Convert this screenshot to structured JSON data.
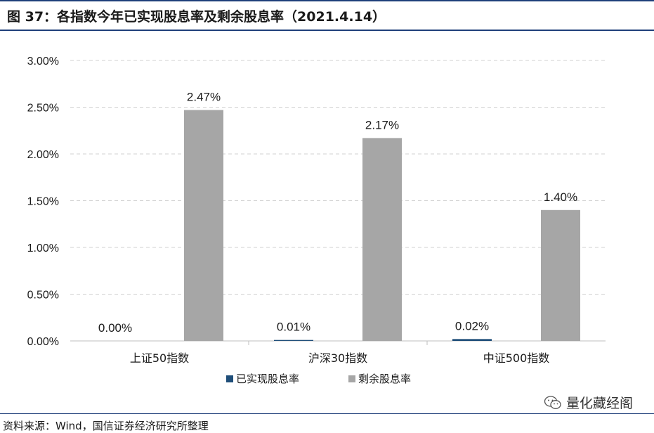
{
  "figure": {
    "title": "图 37：各指数今年已实现股息率及剩余股息率（2021.4.14）",
    "source": "资料来源：Wind，国信证券经济研究所整理",
    "watermark": "量化藏经阁",
    "watermark_icon": "wechat-icon"
  },
  "chart_data": {
    "type": "bar",
    "categories": [
      "上证50指数",
      "沪深30指数",
      "中证500指数"
    ],
    "series": [
      {
        "name": "已实现股息率",
        "values": [
          0.0,
          0.01,
          0.02
        ],
        "labels": [
          "0.00%",
          "0.01%",
          "0.02%"
        ],
        "color": "#1f4e79"
      },
      {
        "name": "剩余股息率",
        "values": [
          2.47,
          2.17,
          1.4
        ],
        "labels": [
          "2.47%",
          "2.17%",
          "1.40%"
        ],
        "color": "#a6a6a6"
      }
    ],
    "ylim": [
      0,
      3.0
    ],
    "yticks": [
      "0.00%",
      "0.50%",
      "1.00%",
      "1.50%",
      "2.00%",
      "2.50%",
      "3.00%"
    ],
    "grid": true,
    "legend_position": "bottom"
  }
}
